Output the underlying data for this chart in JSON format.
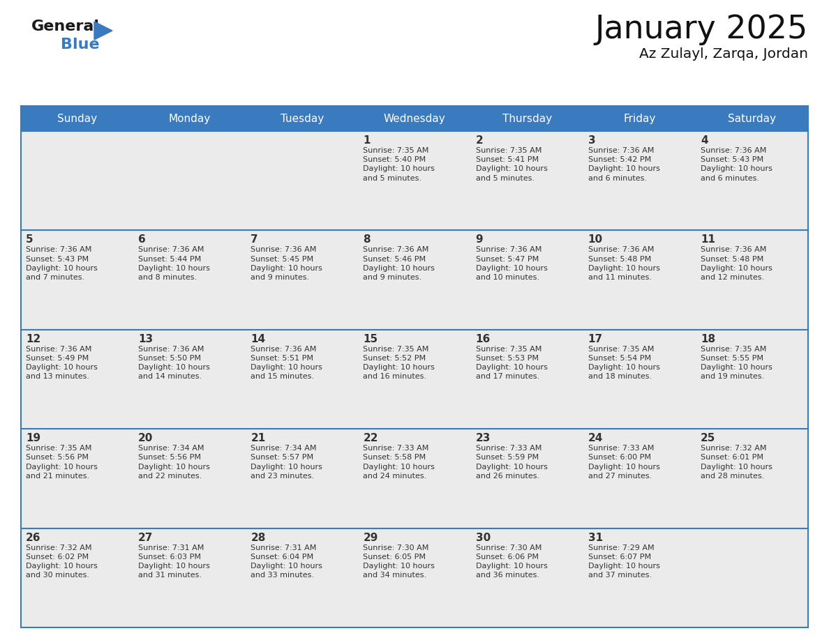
{
  "title": "January 2025",
  "subtitle": "Az Zulayl, Zarqa, Jordan",
  "days_of_week": [
    "Sunday",
    "Monday",
    "Tuesday",
    "Wednesday",
    "Thursday",
    "Friday",
    "Saturday"
  ],
  "header_bg": "#3a7abf",
  "header_text": "#ffffff",
  "cell_bg_gray": "#ebebeb",
  "cell_bg_white": "#ffffff",
  "divider_color": "#3a7abf",
  "text_color": "#333333",
  "logo_general_color": "#1a1a1a",
  "logo_blue_color": "#3a7abf",
  "calendar_data": [
    {
      "day": 1,
      "col": 3,
      "row": 0,
      "sunrise": "7:35 AM",
      "sunset": "5:40 PM",
      "daylight_hours": 10,
      "daylight_minutes": 5
    },
    {
      "day": 2,
      "col": 4,
      "row": 0,
      "sunrise": "7:35 AM",
      "sunset": "5:41 PM",
      "daylight_hours": 10,
      "daylight_minutes": 5
    },
    {
      "day": 3,
      "col": 5,
      "row": 0,
      "sunrise": "7:36 AM",
      "sunset": "5:42 PM",
      "daylight_hours": 10,
      "daylight_minutes": 6
    },
    {
      "day": 4,
      "col": 6,
      "row": 0,
      "sunrise": "7:36 AM",
      "sunset": "5:43 PM",
      "daylight_hours": 10,
      "daylight_minutes": 6
    },
    {
      "day": 5,
      "col": 0,
      "row": 1,
      "sunrise": "7:36 AM",
      "sunset": "5:43 PM",
      "daylight_hours": 10,
      "daylight_minutes": 7
    },
    {
      "day": 6,
      "col": 1,
      "row": 1,
      "sunrise": "7:36 AM",
      "sunset": "5:44 PM",
      "daylight_hours": 10,
      "daylight_minutes": 8
    },
    {
      "day": 7,
      "col": 2,
      "row": 1,
      "sunrise": "7:36 AM",
      "sunset": "5:45 PM",
      "daylight_hours": 10,
      "daylight_minutes": 9
    },
    {
      "day": 8,
      "col": 3,
      "row": 1,
      "sunrise": "7:36 AM",
      "sunset": "5:46 PM",
      "daylight_hours": 10,
      "daylight_minutes": 9
    },
    {
      "day": 9,
      "col": 4,
      "row": 1,
      "sunrise": "7:36 AM",
      "sunset": "5:47 PM",
      "daylight_hours": 10,
      "daylight_minutes": 10
    },
    {
      "day": 10,
      "col": 5,
      "row": 1,
      "sunrise": "7:36 AM",
      "sunset": "5:48 PM",
      "daylight_hours": 10,
      "daylight_minutes": 11
    },
    {
      "day": 11,
      "col": 6,
      "row": 1,
      "sunrise": "7:36 AM",
      "sunset": "5:48 PM",
      "daylight_hours": 10,
      "daylight_minutes": 12
    },
    {
      "day": 12,
      "col": 0,
      "row": 2,
      "sunrise": "7:36 AM",
      "sunset": "5:49 PM",
      "daylight_hours": 10,
      "daylight_minutes": 13
    },
    {
      "day": 13,
      "col": 1,
      "row": 2,
      "sunrise": "7:36 AM",
      "sunset": "5:50 PM",
      "daylight_hours": 10,
      "daylight_minutes": 14
    },
    {
      "day": 14,
      "col": 2,
      "row": 2,
      "sunrise": "7:36 AM",
      "sunset": "5:51 PM",
      "daylight_hours": 10,
      "daylight_minutes": 15
    },
    {
      "day": 15,
      "col": 3,
      "row": 2,
      "sunrise": "7:35 AM",
      "sunset": "5:52 PM",
      "daylight_hours": 10,
      "daylight_minutes": 16
    },
    {
      "day": 16,
      "col": 4,
      "row": 2,
      "sunrise": "7:35 AM",
      "sunset": "5:53 PM",
      "daylight_hours": 10,
      "daylight_minutes": 17
    },
    {
      "day": 17,
      "col": 5,
      "row": 2,
      "sunrise": "7:35 AM",
      "sunset": "5:54 PM",
      "daylight_hours": 10,
      "daylight_minutes": 18
    },
    {
      "day": 18,
      "col": 6,
      "row": 2,
      "sunrise": "7:35 AM",
      "sunset": "5:55 PM",
      "daylight_hours": 10,
      "daylight_minutes": 19
    },
    {
      "day": 19,
      "col": 0,
      "row": 3,
      "sunrise": "7:35 AM",
      "sunset": "5:56 PM",
      "daylight_hours": 10,
      "daylight_minutes": 21
    },
    {
      "day": 20,
      "col": 1,
      "row": 3,
      "sunrise": "7:34 AM",
      "sunset": "5:56 PM",
      "daylight_hours": 10,
      "daylight_minutes": 22
    },
    {
      "day": 21,
      "col": 2,
      "row": 3,
      "sunrise": "7:34 AM",
      "sunset": "5:57 PM",
      "daylight_hours": 10,
      "daylight_minutes": 23
    },
    {
      "day": 22,
      "col": 3,
      "row": 3,
      "sunrise": "7:33 AM",
      "sunset": "5:58 PM",
      "daylight_hours": 10,
      "daylight_minutes": 24
    },
    {
      "day": 23,
      "col": 4,
      "row": 3,
      "sunrise": "7:33 AM",
      "sunset": "5:59 PM",
      "daylight_hours": 10,
      "daylight_minutes": 26
    },
    {
      "day": 24,
      "col": 5,
      "row": 3,
      "sunrise": "7:33 AM",
      "sunset": "6:00 PM",
      "daylight_hours": 10,
      "daylight_minutes": 27
    },
    {
      "day": 25,
      "col": 6,
      "row": 3,
      "sunrise": "7:32 AM",
      "sunset": "6:01 PM",
      "daylight_hours": 10,
      "daylight_minutes": 28
    },
    {
      "day": 26,
      "col": 0,
      "row": 4,
      "sunrise": "7:32 AM",
      "sunset": "6:02 PM",
      "daylight_hours": 10,
      "daylight_minutes": 30
    },
    {
      "day": 27,
      "col": 1,
      "row": 4,
      "sunrise": "7:31 AM",
      "sunset": "6:03 PM",
      "daylight_hours": 10,
      "daylight_minutes": 31
    },
    {
      "day": 28,
      "col": 2,
      "row": 4,
      "sunrise": "7:31 AM",
      "sunset": "6:04 PM",
      "daylight_hours": 10,
      "daylight_minutes": 33
    },
    {
      "day": 29,
      "col": 3,
      "row": 4,
      "sunrise": "7:30 AM",
      "sunset": "6:05 PM",
      "daylight_hours": 10,
      "daylight_minutes": 34
    },
    {
      "day": 30,
      "col": 4,
      "row": 4,
      "sunrise": "7:30 AM",
      "sunset": "6:06 PM",
      "daylight_hours": 10,
      "daylight_minutes": 36
    },
    {
      "day": 31,
      "col": 5,
      "row": 4,
      "sunrise": "7:29 AM",
      "sunset": "6:07 PM",
      "daylight_hours": 10,
      "daylight_minutes": 37
    }
  ]
}
